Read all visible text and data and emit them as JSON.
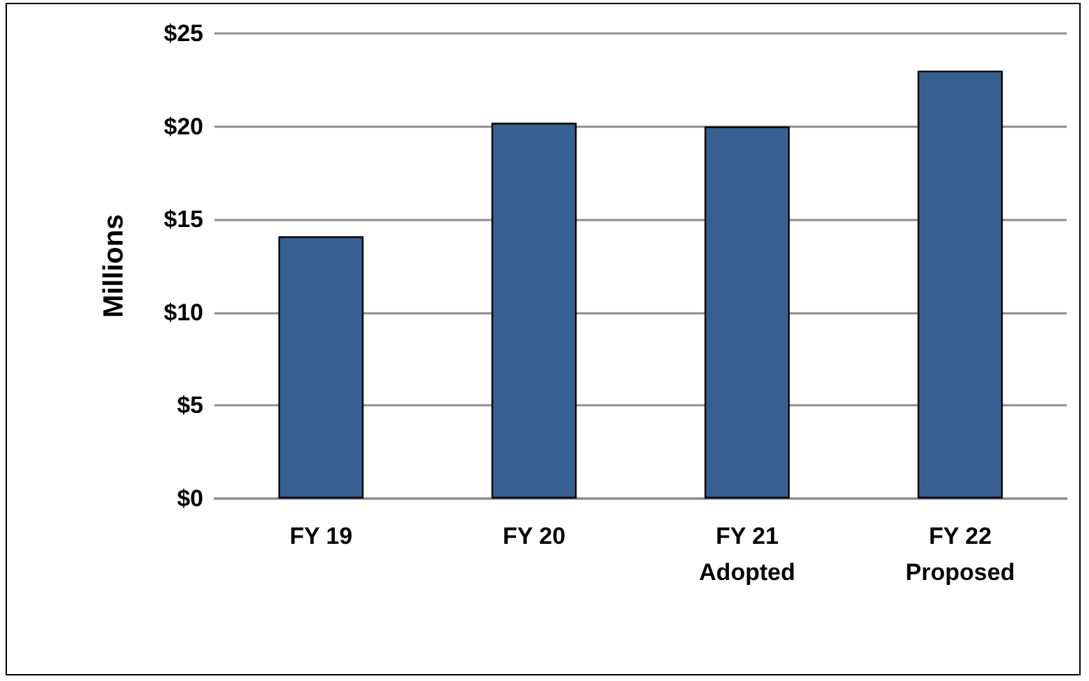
{
  "chart_data": {
    "type": "bar",
    "ylabel": "Millions",
    "categories": [
      "FY 19",
      "FY 20",
      "FY 21\nAdopted",
      "FY 22\nProposed"
    ],
    "values": [
      14.1,
      20.2,
      20.0,
      23.0
    ],
    "color": "#376092",
    "ylim": [
      0,
      25
    ],
    "yticks": [
      {
        "value": 0,
        "label": "$0"
      },
      {
        "value": 5,
        "label": "$5"
      },
      {
        "value": 10,
        "label": "$10"
      },
      {
        "value": 15,
        "label": "$15"
      },
      {
        "value": 20,
        "label": "$20"
      },
      {
        "value": 25,
        "label": "$25"
      }
    ],
    "grid": true
  }
}
